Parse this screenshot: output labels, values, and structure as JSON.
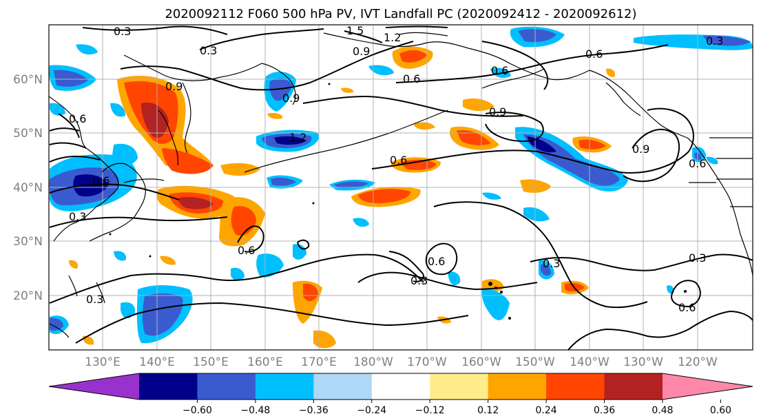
{
  "title": "2020092112 F060 500 hPa PV, IVT Landfall PC (2020092412 - 2020092612)",
  "map": {
    "lat_ticks": [
      "60°N",
      "50°N",
      "40°N",
      "30°N",
      "20°N"
    ],
    "lon_ticks": [
      "130°E",
      "140°E",
      "150°E",
      "160°E",
      "170°E",
      "180°W",
      "170°W",
      "160°W",
      "150°W",
      "140°W",
      "130°W",
      "120°W"
    ],
    "contour_labels": [
      "0.3",
      "0.3",
      "1.5",
      "1.2",
      "0.9",
      "0.9",
      "0.6",
      "0.6",
      "0.6",
      "0.9",
      "0.9",
      "1.2",
      "0.6",
      "0.9",
      "0.6",
      "0.6",
      "0.6",
      "0.6",
      "0.3",
      "0.3",
      "0.3",
      "0.3",
      "0.6",
      "0.3",
      "0.6",
      "0.3"
    ],
    "colors": {
      "land": "#000000",
      "grid": "#b0b0b0",
      "contour": "#000000"
    }
  },
  "colorbar": {
    "tick_labels": [
      "−0.60",
      "−0.48",
      "−0.36",
      "−0.24",
      "−0.12",
      "0.12",
      "0.24",
      "0.36",
      "0.48",
      "0.60"
    ],
    "colors": [
      "#9932cc",
      "#00008b",
      "#3a5bd0",
      "#00bfff",
      "#add8f6",
      "#ffffff",
      "#ffec8b",
      "#ffa500",
      "#ff4500",
      "#b22222",
      "#ff88aa"
    ]
  }
}
